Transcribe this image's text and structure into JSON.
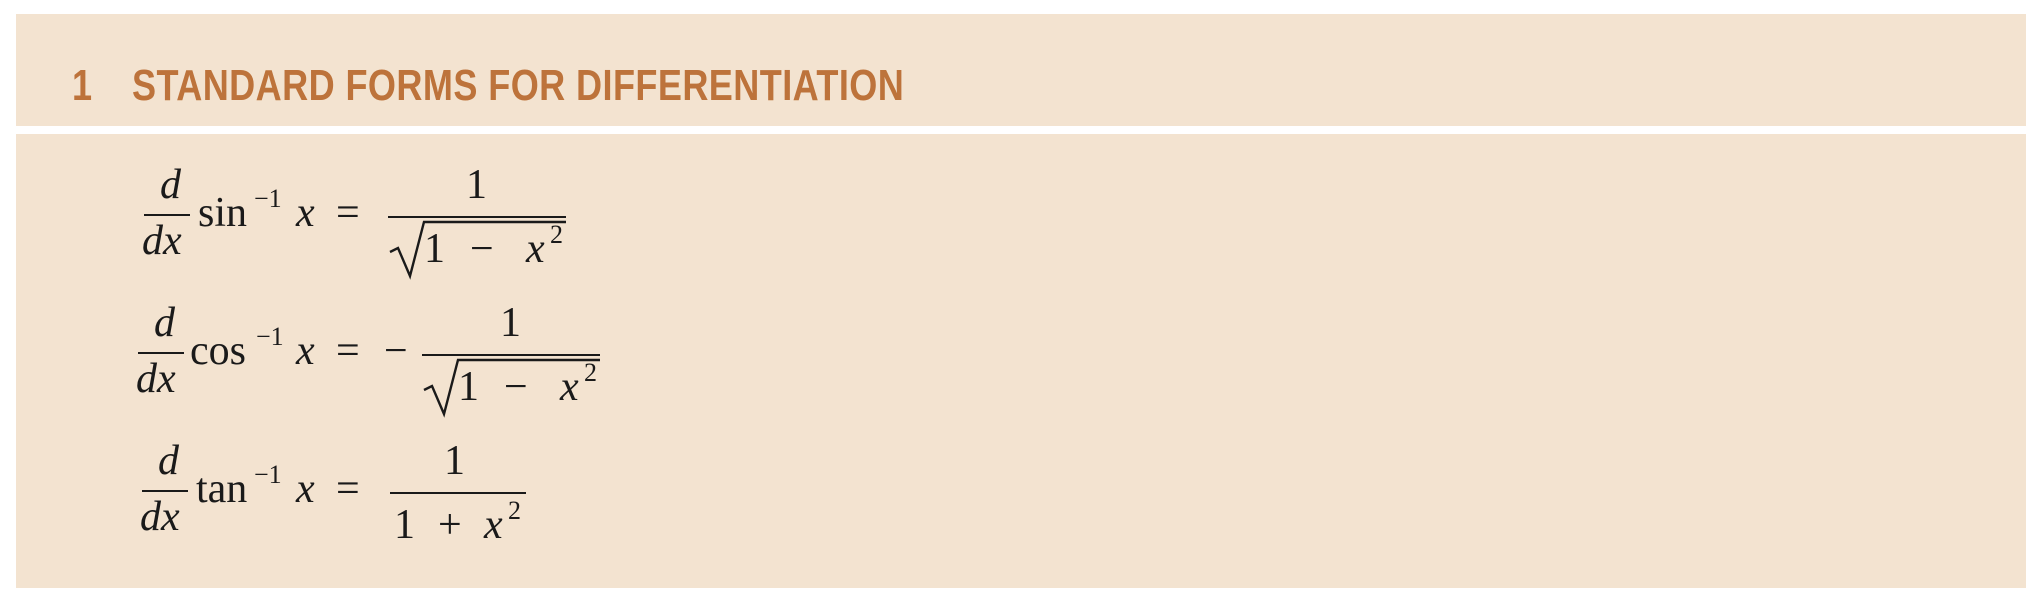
{
  "section": {
    "number": "1",
    "title": "STANDARD FORMS FOR DIFFERENTIATION"
  },
  "formulas": [
    {
      "derivative_numerator": "d",
      "derivative_denominator": "dx",
      "function": "sin",
      "exponent": "−1",
      "variable": "x",
      "equals": "=",
      "sign": "",
      "numerator": "1",
      "denominator_const": "1",
      "denominator_op": "−",
      "denominator_var": "x",
      "denominator_exp": "2",
      "radical": true
    },
    {
      "derivative_numerator": "d",
      "derivative_denominator": "dx",
      "function": "cos",
      "exponent": "−1",
      "variable": "x",
      "equals": "=",
      "sign": "−",
      "numerator": "1",
      "denominator_const": "1",
      "denominator_op": "−",
      "denominator_var": "x",
      "denominator_exp": "2",
      "radical": true
    },
    {
      "derivative_numerator": "d",
      "derivative_denominator": "dx",
      "function": "tan",
      "exponent": "−1",
      "variable": "x",
      "equals": "=",
      "sign": "",
      "numerator": "1",
      "denominator_const": "1",
      "denominator_op": "+",
      "denominator_var": "x",
      "denominator_exp": "2",
      "radical": false
    }
  ]
}
